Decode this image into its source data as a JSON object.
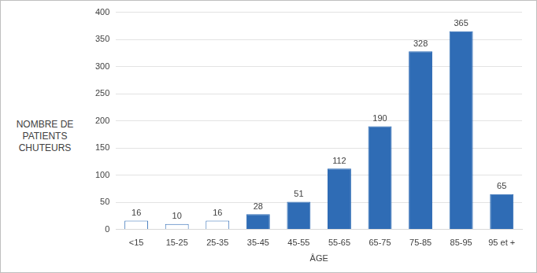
{
  "chart_data": {
    "type": "bar",
    "ylabel": "NOMBRE DE PATIENTS CHUTEURS",
    "xlabel": "ÂGE",
    "categories": [
      "<15",
      "15-25",
      "25-35",
      "35-45",
      "45-55",
      "55-65",
      "65-75",
      "75-85",
      "85-95",
      "95 et +"
    ],
    "values": [
      16,
      10,
      16,
      28,
      51,
      112,
      190,
      328,
      365,
      65
    ],
    "colors": [
      "#ffffff",
      "#ffffff",
      "#ffffff",
      "#2f6cb5",
      "#2f6cb5",
      "#2f6cb5",
      "#2f6cb5",
      "#2f6cb5",
      "#2f6cb5",
      "#2f6cb5"
    ],
    "ylim": [
      0,
      400
    ],
    "yticks": [
      0,
      50,
      100,
      150,
      200,
      250,
      300,
      350,
      400
    ],
    "grid": true,
    "data_labels": true
  }
}
